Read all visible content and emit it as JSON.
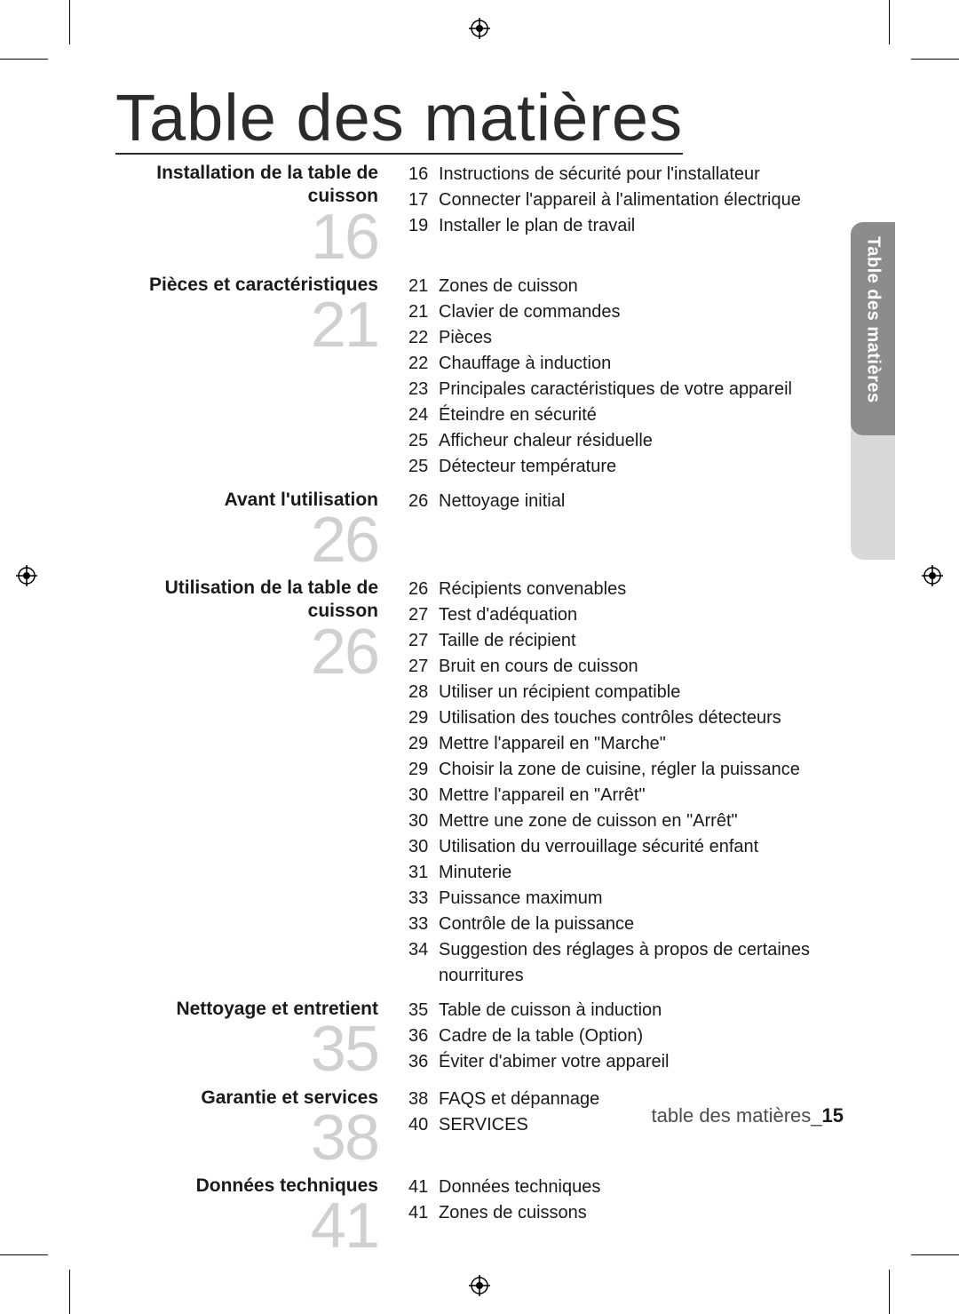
{
  "title": "Table des matières",
  "side_tab": {
    "label": "Table des matières"
  },
  "footer": {
    "label": "table des matières",
    "separator": "_",
    "page": "15"
  },
  "colors": {
    "text": "#1a1a1a",
    "title": "#2b2b2b",
    "bignum": "#d0d0d0",
    "tab_dark": "#8c8c8c",
    "tab_light": "#d9d9d9",
    "tab_text": "#ffffff",
    "footer_label": "#4d4d4d"
  },
  "typography": {
    "title_fontsize": 74,
    "section_title_fontsize": 21,
    "bignum_fontsize": 72,
    "entry_fontsize": 20,
    "footer_fontsize": 22,
    "tab_fontsize": 20
  },
  "sections": [
    {
      "title": "Installation de la table de cuisson",
      "number": "16",
      "entries": [
        {
          "page": "16",
          "label": "Instructions de sécurité pour l'installateur"
        },
        {
          "page": "17",
          "label": "Connecter l'appareil à l'alimentation électrique"
        },
        {
          "page": "19",
          "label": "Installer le plan de travail"
        }
      ]
    },
    {
      "title": "Pièces et caractéristiques",
      "number": "21",
      "entries": [
        {
          "page": "21",
          "label": "Zones de cuisson"
        },
        {
          "page": "21",
          "label": "Clavier de commandes"
        },
        {
          "page": "22",
          "label": "Pièces"
        },
        {
          "page": "22",
          "label": "Chauffage à induction"
        },
        {
          "page": "23",
          "label": "Principales caractéristiques de votre appareil"
        },
        {
          "page": "24",
          "label": "Éteindre en sécurité"
        },
        {
          "page": "25",
          "label": "Afficheur chaleur résiduelle"
        },
        {
          "page": "25",
          "label": "Détecteur température"
        }
      ]
    },
    {
      "title": "Avant l'utilisation",
      "number": "26",
      "entries": [
        {
          "page": "26",
          "label": "Nettoyage initial"
        }
      ]
    },
    {
      "title": "Utilisation de la table de cuisson",
      "number": "26",
      "entries": [
        {
          "page": "26",
          "label": "Récipients convenables"
        },
        {
          "page": "27",
          "label": "Test d'adéquation"
        },
        {
          "page": "27",
          "label": "Taille de récipient"
        },
        {
          "page": "27",
          "label": "Bruit en cours de cuisson"
        },
        {
          "page": "28",
          "label": "Utiliser un récipient compatible"
        },
        {
          "page": "29",
          "label": "Utilisation des touches contrôles détecteurs"
        },
        {
          "page": "29",
          "label": "Mettre l'appareil en \"Marche\""
        },
        {
          "page": "29",
          "label": "Choisir la zone de cuisine, régler la puissance"
        },
        {
          "page": "30",
          "label": "Mettre l'appareil en \"Arrêt\""
        },
        {
          "page": "30",
          "label": "Mettre une zone de cuisson en \"Arrêt\""
        },
        {
          "page": "30",
          "label": "Utilisation du verrouillage sécurité enfant"
        },
        {
          "page": "31",
          "label": "Minuterie"
        },
        {
          "page": "33",
          "label": "Puissance maximum"
        },
        {
          "page": "33",
          "label": "Contrôle de la puissance"
        },
        {
          "page": "34",
          "label": "Suggestion des réglages à propos de certaines nourritures"
        }
      ]
    },
    {
      "title": "Nettoyage et entretient",
      "number": "35",
      "entries": [
        {
          "page": "35",
          "label": "Table de cuisson à induction"
        },
        {
          "page": "36",
          "label": "Cadre de la table (Option)"
        },
        {
          "page": "36",
          "label": "Éviter d'abimer votre appareil"
        }
      ]
    },
    {
      "title": "Garantie et services",
      "number": "38",
      "entries": [
        {
          "page": "38",
          "label": "FAQS et dépannage"
        },
        {
          "page": "40",
          "label": "SERVICES"
        }
      ]
    },
    {
      "title": "Données techniques",
      "number": "41",
      "entries": [
        {
          "page": "41",
          "label": "Données techniques"
        },
        {
          "page": "41",
          "label": "Zones de cuissons"
        }
      ]
    }
  ]
}
